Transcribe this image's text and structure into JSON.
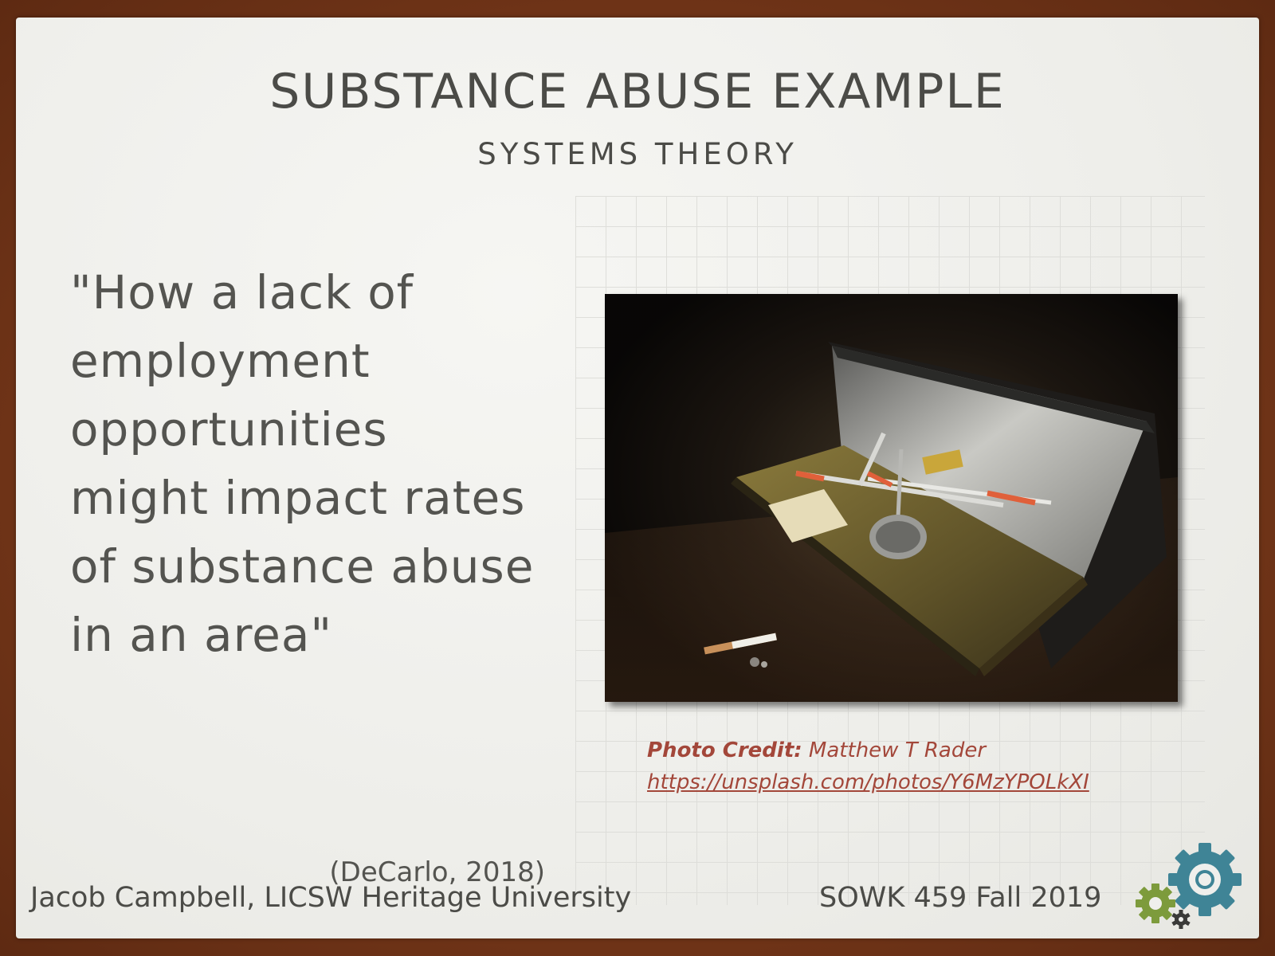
{
  "slide": {
    "title": "SUBSTANCE ABUSE EXAMPLE",
    "subtitle": "SYSTEMS THEORY",
    "quote_lines": [
      "\"How a lack of",
      "employment",
      "opportunities",
      "might impact rates",
      "of substance abuse",
      "in an area\""
    ],
    "citation": "(DeCarlo, 2018)",
    "photo_credit": {
      "label": "Photo Credit",
      "separator": ":",
      "author": " Matthew T Rader",
      "url": "https://unsplash.com/photos/Y6MzYPOLkXI"
    }
  },
  "footer": {
    "left": "Jacob Campbell, LICSW Heritage University",
    "right": "SOWK 459 Fall 2019"
  },
  "icons": [
    "gears-icon"
  ],
  "colors": {
    "border": "#7a3d1e",
    "text": "#4b4b47",
    "credit": "#a3473a",
    "gear_large": "#3f8496",
    "gear_small": "#7d9b3c",
    "gear_tiny": "#3a3a38"
  }
}
